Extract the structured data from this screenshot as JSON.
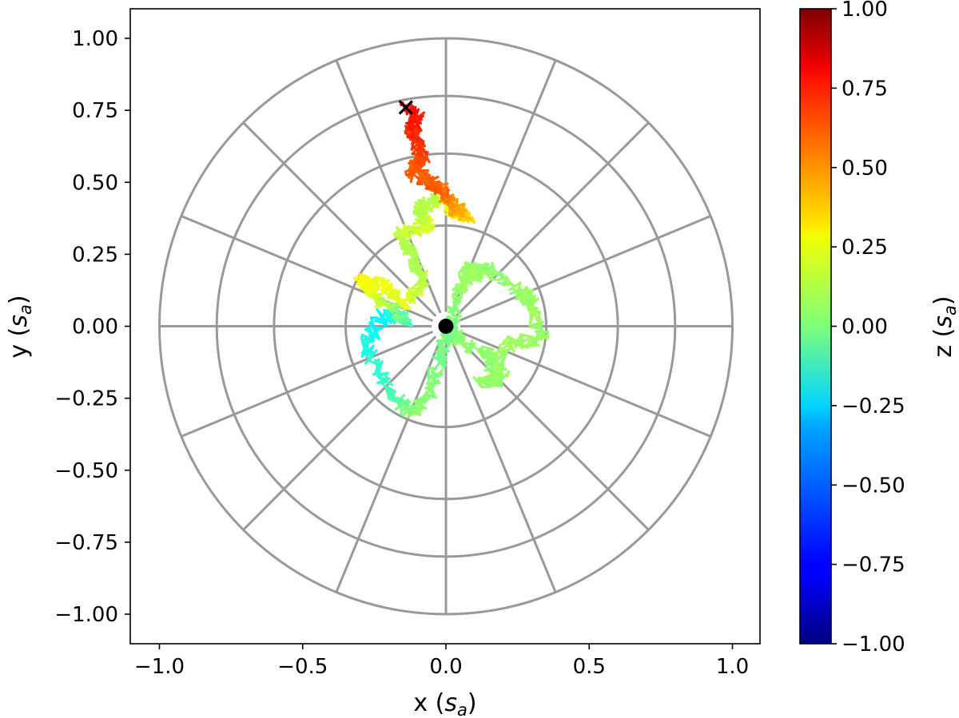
{
  "chart_data": {
    "type": "scatter",
    "description_free": true,
    "xlabel": {
      "prefix": "x (",
      "symbol": "s",
      "subscript": "a",
      "suffix": ")"
    },
    "ylabel": {
      "prefix": "y (",
      "symbol": "s",
      "subscript": "a",
      "suffix": ")"
    },
    "colorbar_label": {
      "prefix": "z (",
      "symbol": "s",
      "subscript": "a",
      "suffix": ")"
    },
    "xlim": [
      -1.1,
      1.1
    ],
    "ylim": [
      -1.1,
      1.1
    ],
    "x_ticks": [
      -1.0,
      -0.5,
      0.0,
      0.5,
      1.0
    ],
    "x_tick_labels": [
      "−1.0",
      "−0.5",
      "0.0",
      "0.5",
      "1.0"
    ],
    "y_ticks": [
      1.0,
      0.75,
      0.5,
      0.25,
      0.0,
      -0.25,
      -0.5,
      -0.75,
      -1.0
    ],
    "y_tick_labels": [
      "1.00",
      "0.75",
      "0.50",
      "0.25",
      "0.00",
      "−0.25",
      "−0.50",
      "−0.75",
      "−1.00"
    ],
    "colorbar": {
      "colormap": "jet",
      "range": [
        -1.0,
        1.0
      ],
      "ticks": [
        1.0,
        0.75,
        0.5,
        0.25,
        0.0,
        -0.25,
        -0.5,
        -0.75,
        -1.0
      ],
      "tick_labels": [
        "1.00",
        "0.75",
        "0.50",
        "0.25",
        "0.00",
        "−0.25",
        "−0.50",
        "−0.75",
        "−1.00"
      ]
    },
    "polar_grid": {
      "radii": [
        0.35,
        0.6,
        0.8,
        1.0
      ],
      "spoke_inner_radius": 0.05,
      "spoke_angles_deg": [
        0,
        22.5,
        45,
        67.5,
        90,
        112.5,
        135,
        157.5,
        180,
        202.5,
        225,
        247.5,
        270,
        292.5,
        315,
        337.5
      ],
      "grid_color": "#999999",
      "note_free": true
    },
    "markers": {
      "start": {
        "x": 0.0,
        "y": 0.0,
        "symbol": "filled-circle"
      },
      "end": {
        "x": -0.14,
        "y": 0.76,
        "symbol": "x"
      }
    },
    "trajectory": {
      "waypoints": [
        [
          0.0,
          0.0,
          0.0
        ],
        [
          0.05,
          -0.05,
          0.02
        ],
        [
          0.15,
          -0.1,
          0.03
        ],
        [
          0.2,
          -0.18,
          0.05
        ],
        [
          0.12,
          -0.2,
          0.04
        ],
        [
          0.22,
          -0.06,
          0.05
        ],
        [
          0.34,
          -0.04,
          0.06
        ],
        [
          0.3,
          0.08,
          0.06
        ],
        [
          0.26,
          0.12,
          0.05
        ],
        [
          0.14,
          0.2,
          0.04
        ],
        [
          0.1,
          0.18,
          0.05
        ],
        [
          0.08,
          0.2,
          0.06
        ],
        [
          0.04,
          0.1,
          0.04
        ],
        [
          0.02,
          0.0,
          0.0
        ],
        [
          -0.02,
          -0.1,
          -0.02
        ],
        [
          -0.05,
          -0.22,
          0.02
        ],
        [
          -0.12,
          -0.3,
          0.03
        ],
        [
          -0.2,
          -0.22,
          -0.12
        ],
        [
          -0.28,
          -0.06,
          -0.2
        ],
        [
          -0.22,
          0.04,
          -0.28
        ],
        [
          -0.14,
          0.02,
          -0.1
        ],
        [
          -0.25,
          0.1,
          0.18
        ],
        [
          -0.3,
          0.16,
          0.25
        ],
        [
          -0.22,
          0.14,
          0.22
        ],
        [
          -0.14,
          0.08,
          0.2
        ],
        [
          -0.08,
          0.15,
          0.12
        ],
        [
          -0.12,
          0.26,
          0.08
        ],
        [
          -0.16,
          0.32,
          0.12
        ],
        [
          -0.06,
          0.35,
          0.18
        ],
        [
          -0.1,
          0.4,
          0.1
        ],
        [
          -0.04,
          0.44,
          0.1
        ],
        [
          0.04,
          0.4,
          0.25
        ],
        [
          0.08,
          0.38,
          0.32
        ],
        [
          0.02,
          0.42,
          0.45
        ],
        [
          -0.02,
          0.48,
          0.55
        ],
        [
          -0.06,
          0.5,
          0.58
        ],
        [
          -0.12,
          0.54,
          0.56
        ],
        [
          -0.08,
          0.58,
          0.6
        ],
        [
          -0.1,
          0.64,
          0.65
        ],
        [
          -0.12,
          0.68,
          0.67
        ],
        [
          -0.1,
          0.72,
          0.7
        ],
        [
          -0.14,
          0.76,
          0.72
        ]
      ]
    }
  }
}
